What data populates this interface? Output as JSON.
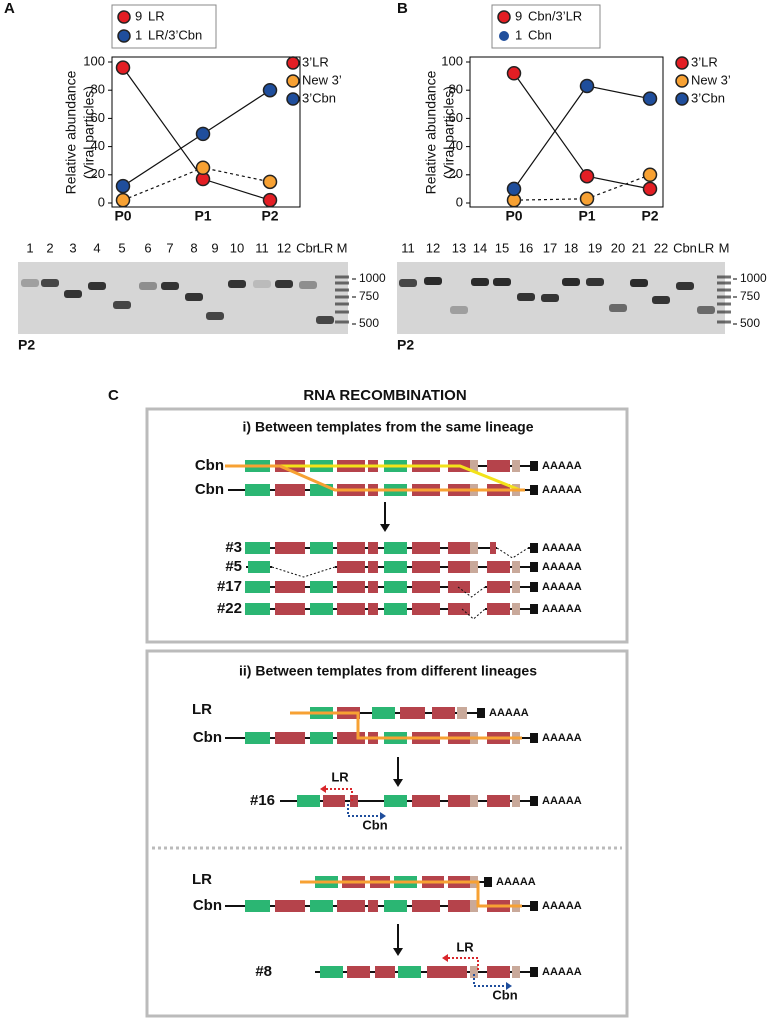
{
  "panels": {
    "a": "A",
    "b": "B",
    "c": "C"
  },
  "chart_data": [
    {
      "type": "line",
      "y_label": [
        "Relative abundance",
        "(Viral particles)"
      ],
      "categories": [
        "P0",
        "P1",
        "P2"
      ],
      "series": [
        {
          "name": "3’LR",
          "color": "#e31e24",
          "values": [
            96,
            17,
            2
          ],
          "line": "solid"
        },
        {
          "name": "New 3’",
          "color": "#f7a133",
          "values": [
            2,
            25,
            15
          ],
          "line": "dashed"
        },
        {
          "name": "3’Cbn",
          "color": "#1f4e9c",
          "values": [
            12,
            49,
            80
          ],
          "line": "solid"
        }
      ],
      "ylim": [
        0,
        100
      ],
      "yticks": [
        0,
        20,
        40,
        60,
        80,
        100
      ],
      "clone_legend": [
        {
          "count": "9",
          "label": "LR",
          "color": "#e31e24"
        },
        {
          "count": "1",
          "label": "LR/3’Cbn",
          "color": "#1f4e9c"
        }
      ]
    },
    {
      "type": "line",
      "y_label": [
        "Relative abundance",
        "(Viral particles)"
      ],
      "categories": [
        "P0",
        "P1",
        "P2"
      ],
      "series": [
        {
          "name": "3’LR",
          "color": "#e31e24",
          "values": [
            92,
            19,
            10
          ],
          "line": "solid"
        },
        {
          "name": "New 3’",
          "color": "#f7a133",
          "values": [
            2,
            3,
            20
          ],
          "line": "dashed"
        },
        {
          "name": "3’Cbn",
          "color": "#1f4e9c",
          "values": [
            10,
            83,
            74
          ],
          "line": "solid"
        }
      ],
      "ylim": [
        0,
        100
      ],
      "yticks": [
        0,
        20,
        40,
        60,
        80,
        100
      ],
      "clone_legend": [
        {
          "count": "9",
          "label": "Cbn/3’LR",
          "color": "#e31e24"
        },
        {
          "count": "1",
          "label": "Cbn",
          "color": "#1f4e9c"
        }
      ]
    }
  ],
  "gels": [
    {
      "lanes": [
        "1",
        "2",
        "3",
        "4",
        "5",
        "6",
        "7",
        "8",
        "9",
        "10",
        "11",
        "12",
        "Cbn",
        "LR",
        "M"
      ],
      "markers": [
        1000,
        750,
        500
      ],
      "passage": "P2"
    },
    {
      "lanes": [
        "11",
        "12",
        "13",
        "14",
        "15",
        "16",
        "17",
        "18",
        "19",
        "20",
        "21",
        "22",
        "Cbn",
        "LR",
        "M"
      ],
      "markers": [
        1000,
        750,
        500
      ],
      "passage": "P2"
    }
  ],
  "diagram": {
    "title": "RNA RECOMBINATION",
    "section_i": {
      "title": "i)  Between templates from the same lineage",
      "templates": [
        {
          "label": "Cbn",
          "tail": "AAAAA"
        },
        {
          "label": "Cbn",
          "tail": "AAAAA"
        }
      ],
      "products": [
        {
          "label": "#3",
          "tail": "AAAAA"
        },
        {
          "label": "#5",
          "tail": "AAAAA"
        },
        {
          "label": "#17",
          "tail": "AAAAA"
        },
        {
          "label": "#22",
          "tail": "AAAAA"
        }
      ]
    },
    "section_ii": {
      "title": "ii) Between templates from different lineages",
      "events": [
        {
          "templates": [
            {
              "label": "LR",
              "tail": "AAAAA"
            },
            {
              "label": "Cbn",
              "tail": "AAAAA"
            }
          ],
          "product": {
            "label": "#16",
            "tail": "AAAAA"
          },
          "switch_labels": [
            "LR",
            "Cbn"
          ]
        },
        {
          "templates": [
            {
              "label": "LR",
              "tail": "AAAAA"
            },
            {
              "label": "Cbn",
              "tail": "AAAAA"
            }
          ],
          "product": {
            "label": "#8",
            "tail": "AAAAA"
          },
          "switch_labels": [
            "LR",
            "Cbn"
          ]
        }
      ]
    }
  }
}
